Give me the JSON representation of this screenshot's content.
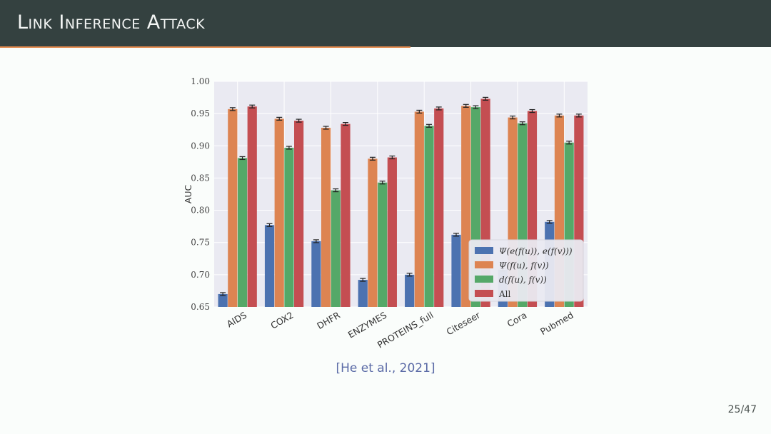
{
  "slide": {
    "title": "Link Inference Attack",
    "citation": "[He et al., 2021]",
    "page": "25/47"
  },
  "colors": {
    "header_bg": "#344140",
    "accent": "#e58c4f",
    "series": [
      "#4c72b0",
      "#dd8452",
      "#55a868",
      "#c44e52"
    ]
  },
  "chart_data": {
    "type": "bar",
    "title": "",
    "xlabel": "",
    "ylabel": "AUC",
    "ylim": [
      0.65,
      1.0
    ],
    "yticks": [
      0.65,
      0.7,
      0.75,
      0.8,
      0.85,
      0.9,
      0.95,
      1.0
    ],
    "grid": true,
    "legend_position": "lower-right",
    "categories": [
      "AIDS",
      "COX2",
      "DHFR",
      "ENZYMES",
      "PROTEINS_full",
      "Citeseer",
      "Cora",
      "Pubmed"
    ],
    "series": [
      {
        "name": "Ψ(e(f(u)), e(f(v)))",
        "values": [
          0.67,
          0.777,
          0.752,
          0.692,
          0.7,
          0.762,
          0.708,
          0.782
        ]
      },
      {
        "name": "Ψ(f(u), f(v))",
        "values": [
          0.957,
          0.942,
          0.928,
          0.88,
          0.953,
          0.962,
          0.944,
          0.947
        ]
      },
      {
        "name": "d(f(u), f(v))",
        "values": [
          0.881,
          0.897,
          0.831,
          0.843,
          0.931,
          0.96,
          0.935,
          0.905
        ]
      },
      {
        "name": "All",
        "values": [
          0.961,
          0.939,
          0.934,
          0.882,
          0.958,
          0.973,
          0.954,
          0.947
        ]
      }
    ]
  }
}
